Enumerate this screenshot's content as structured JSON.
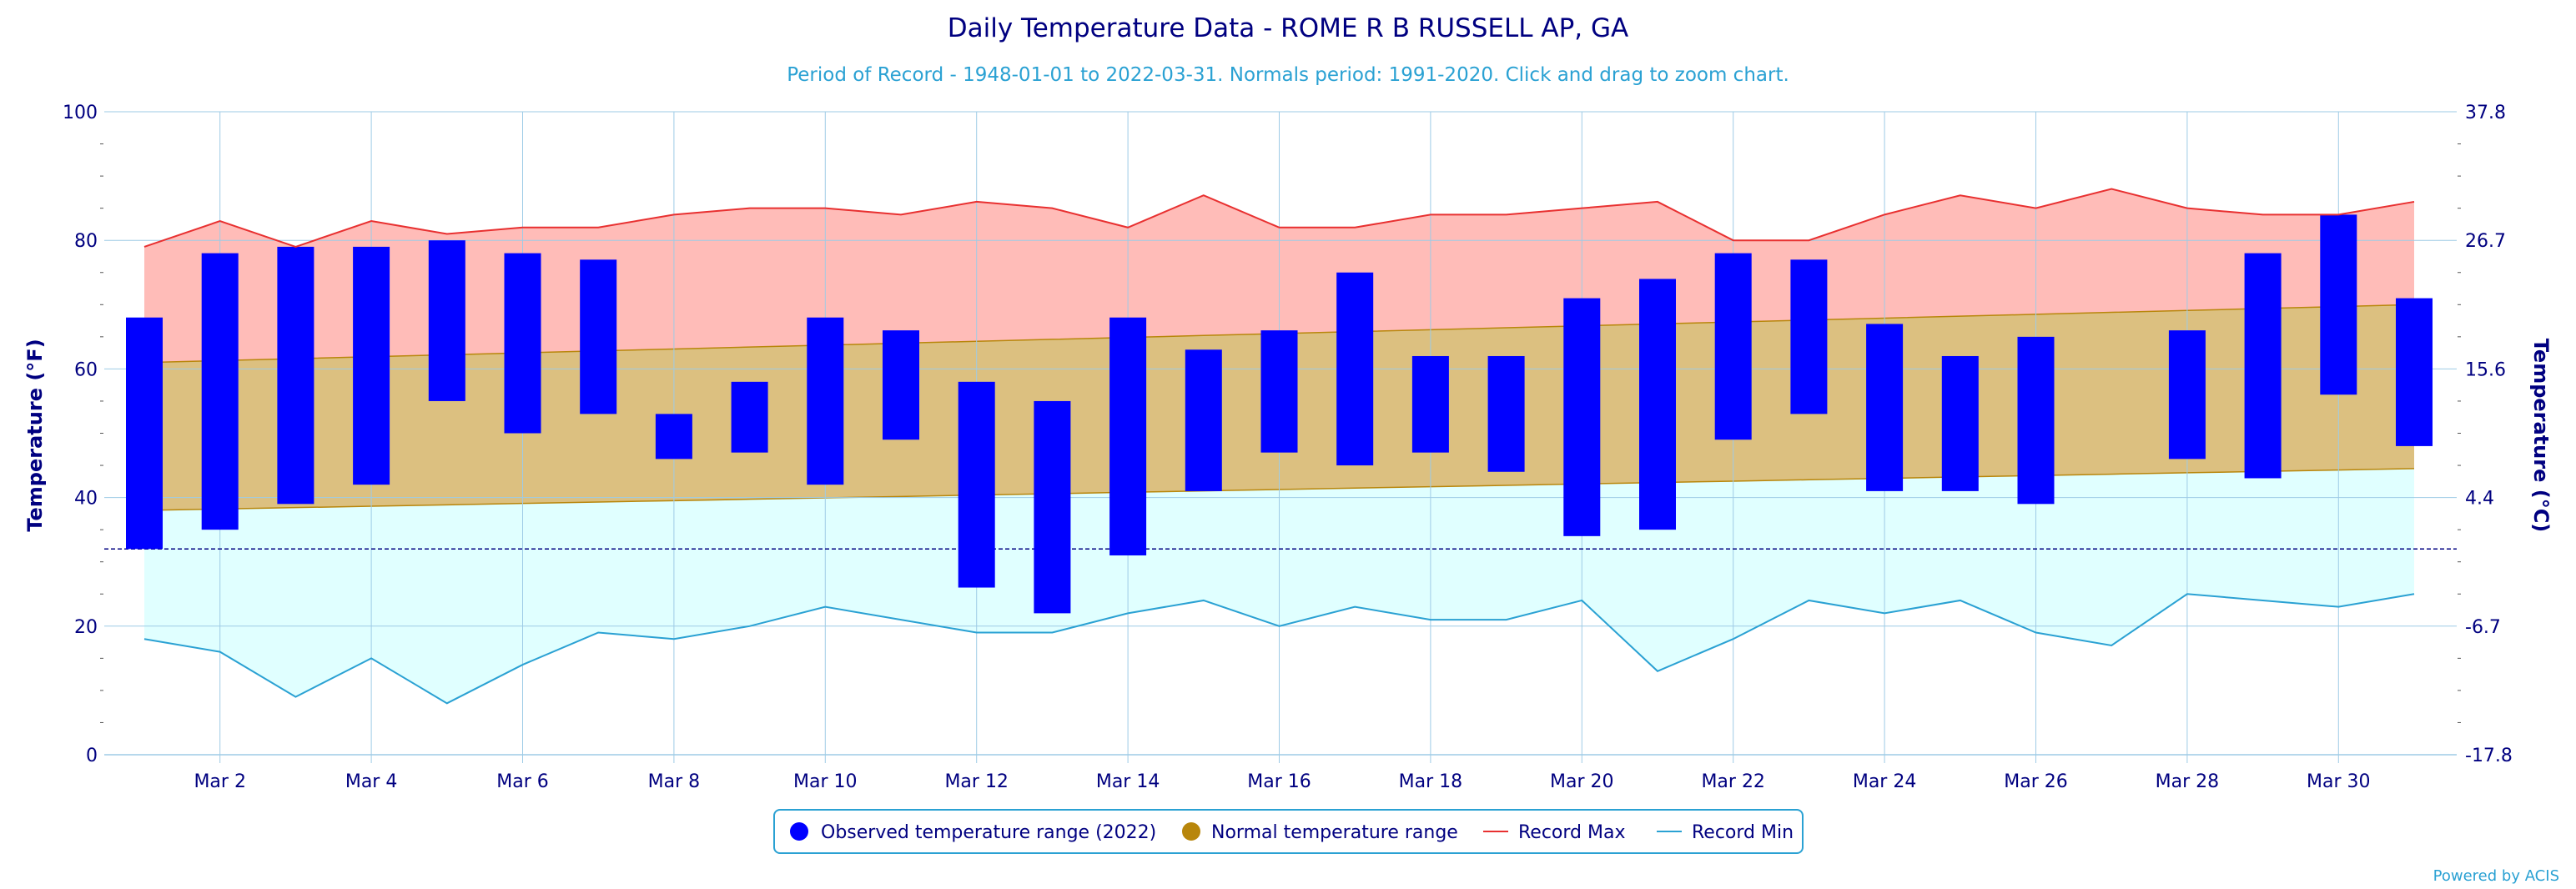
{
  "chart_data": {
    "type": "bar",
    "title": "Daily Temperature Data - ROME R B RUSSELL AP, GA",
    "subtitle": "Period of Record - 1948-01-01 to 2022-03-31. Normals period: 1991-2020. Click and drag to zoom chart.",
    "ylabel": "Temperature (°F)",
    "ylabel_right": "Temperature (°C)",
    "ylim": [
      0,
      100
    ],
    "y_ticks": [
      "0",
      "20",
      "40",
      "60",
      "80",
      "100"
    ],
    "y_ticks_right": [
      "-17.8",
      "-6.7",
      "4.4",
      "15.6",
      "26.7",
      "37.8"
    ],
    "freezing_line_value": 32,
    "x_tick_labels": [
      "Mar 2",
      "Mar 4",
      "Mar 6",
      "Mar 8",
      "Mar 10",
      "Mar 12",
      "Mar 14",
      "Mar 16",
      "Mar 18",
      "Mar 20",
      "Mar 22",
      "Mar 24",
      "Mar 26",
      "Mar 28",
      "Mar 30"
    ],
    "days": [
      1,
      2,
      3,
      4,
      5,
      6,
      7,
      8,
      9,
      10,
      11,
      12,
      13,
      14,
      15,
      16,
      17,
      18,
      19,
      20,
      21,
      22,
      23,
      24,
      25,
      26,
      27,
      28,
      29,
      30,
      31
    ],
    "series": [
      {
        "name": "Observed temperature range (2022)",
        "color": "#0000ff",
        "low": [
          32,
          35,
          39,
          42,
          55,
          50,
          53,
          46,
          47,
          42,
          49,
          26,
          22,
          31,
          41,
          47,
          45,
          47,
          44,
          34,
          35,
          49,
          53,
          41,
          41,
          39,
          null,
          46,
          43,
          56,
          48
        ],
        "high": [
          68,
          78,
          79,
          79,
          80,
          78,
          77,
          53,
          58,
          68,
          66,
          58,
          55,
          68,
          63,
          66,
          75,
          62,
          62,
          71,
          74,
          78,
          77,
          67,
          62,
          65,
          null,
          66,
          78,
          84,
          71
        ]
      },
      {
        "name": "Normal temperature range",
        "color": "#b8860b",
        "low_start": 38,
        "low_end": 44.5,
        "high_start": 61,
        "high_end": 70
      },
      {
        "name": "Record Max",
        "color": "#e83030",
        "values": [
          79,
          83,
          79,
          83,
          81,
          82,
          82,
          84,
          85,
          85,
          84,
          86,
          85,
          82,
          87,
          82,
          82,
          84,
          84,
          85,
          86,
          80,
          80,
          84,
          87,
          85,
          88,
          85,
          84,
          84,
          86
        ]
      },
      {
        "name": "Record Min",
        "color": "#2aa1d3",
        "values": [
          18,
          16,
          9,
          15,
          8,
          14,
          19,
          18,
          20,
          23,
          21,
          19,
          19,
          22,
          24,
          20,
          23,
          21,
          21,
          24,
          13,
          18,
          24,
          22,
          24,
          19,
          17,
          25,
          24,
          23,
          25
        ]
      }
    ],
    "legend_position": "bottom-center",
    "credits": "Powered by ACIS"
  }
}
